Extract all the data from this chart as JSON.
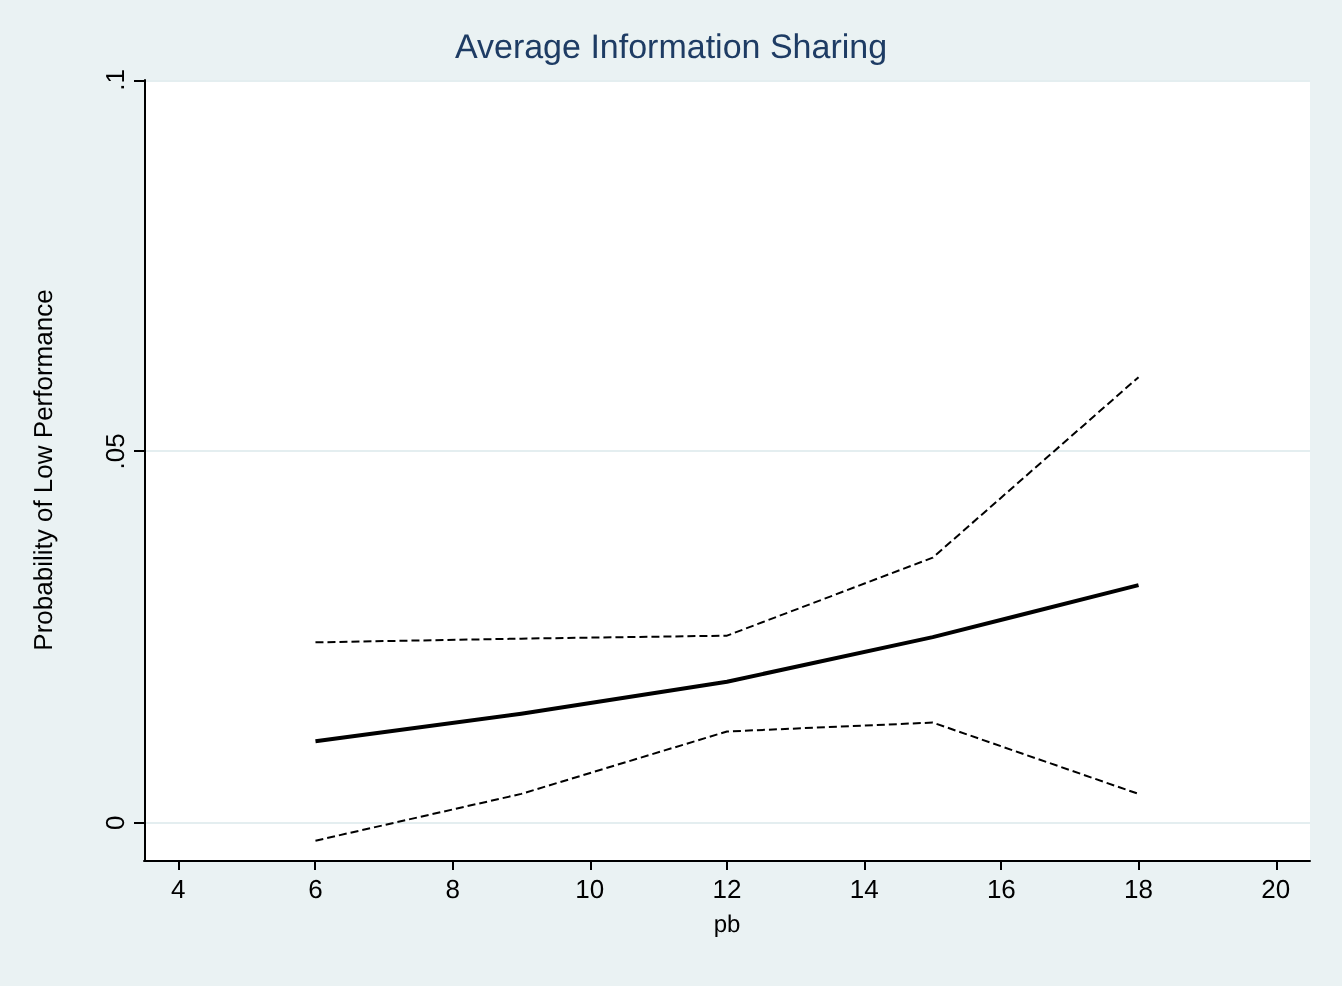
{
  "chart_data": {
    "type": "line",
    "title": "Average Information Sharing",
    "xlabel": "pb",
    "ylabel": "Probability of Low Performance",
    "x": [
      6,
      9,
      12,
      15,
      18
    ],
    "series": [
      {
        "color": "#000000",
        "values": [
          0.011,
          0.0147,
          0.019,
          0.025,
          0.032
        ],
        "line_style": "solid"
      },
      {
        "color": "#000000",
        "values": [
          -0.0024,
          0.0039,
          0.0123,
          0.0135,
          0.0039
        ],
        "line_style": "dashed"
      },
      {
        "color": "#000000",
        "values": [
          0.0243,
          0.0248,
          0.0252,
          0.0357,
          0.06
        ],
        "line_style": "dashed"
      }
    ],
    "xlim": [
      3.5,
      20.5
    ],
    "xticks": [
      4,
      6,
      8,
      10,
      12,
      14,
      16,
      18,
      20
    ],
    "ylim": [
      -0.005,
      0.1
    ],
    "yticks": [
      {
        "value": 0,
        "label": "0"
      },
      {
        "value": 0.05,
        "label": ".05"
      },
      {
        "value": 0.1,
        "label": ".1"
      }
    ],
    "grid": "y",
    "marker": "none"
  }
}
